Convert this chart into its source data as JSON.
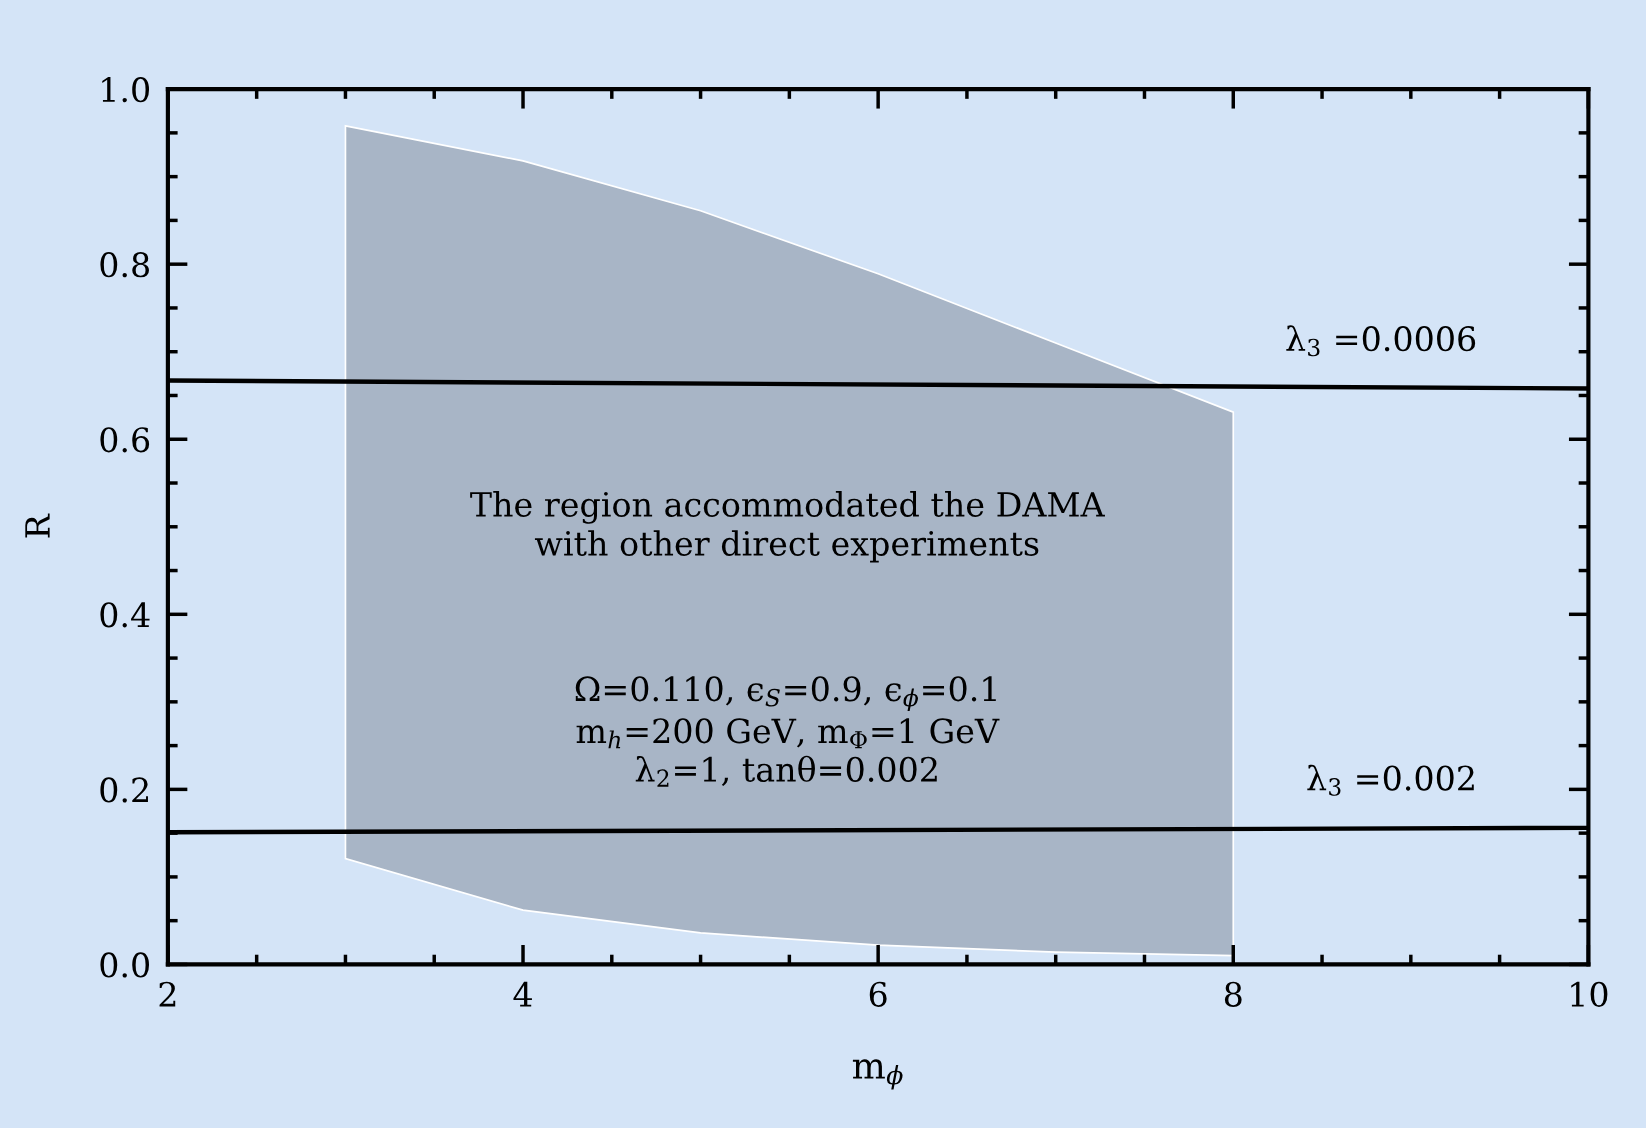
{
  "chart_data": {
    "type": "line",
    "xlabel": "m$_{ϕ}$",
    "ylabel": "R",
    "xlim": [
      2,
      10
    ],
    "xticks": [
      2,
      4,
      6,
      8,
      10
    ],
    "ylim": [
      0.0,
      1.0
    ],
    "yticks": [
      {
        "value": 0.0,
        "label": "0.0"
      },
      0.2,
      0.4,
      0.6,
      0.8,
      {
        "value": 1.0,
        "label": "1.0"
      }
    ],
    "grid": false,
    "series": [
      {
        "type": "area",
        "color": "#a8b5c6",
        "x": [
          3,
          4,
          5,
          6,
          7,
          8,
          8,
          7,
          6,
          5,
          4,
          3
        ],
        "values": [
          0.958,
          0.918,
          0.861,
          0.789,
          0.71,
          0.631,
          0.01,
          0.014,
          0.022,
          0.036,
          0.062,
          0.121
        ]
      },
      {
        "name": "λ$_{3}$ =0.0006",
        "color": "#000000",
        "x": [
          2,
          10
        ],
        "values": [
          0.667,
          0.658
        ]
      },
      {
        "name": "λ$_{3}$ =0.002",
        "color": "#000000",
        "x": [
          2,
          10
        ],
        "values": [
          0.151,
          0.156
        ]
      }
    ],
    "annotations": [
      "The region accommodated the DAMA\nwith other direct experiments",
      "Ω=0.110, ϵ$_{S}$=0.9, ϵ$_{ϕ}$=0.1\nm$_{h}$=200 GeV, m$_{Φ}$=1 GeV\nλ$_{2}$=1, tanθ=0.002"
    ]
  }
}
